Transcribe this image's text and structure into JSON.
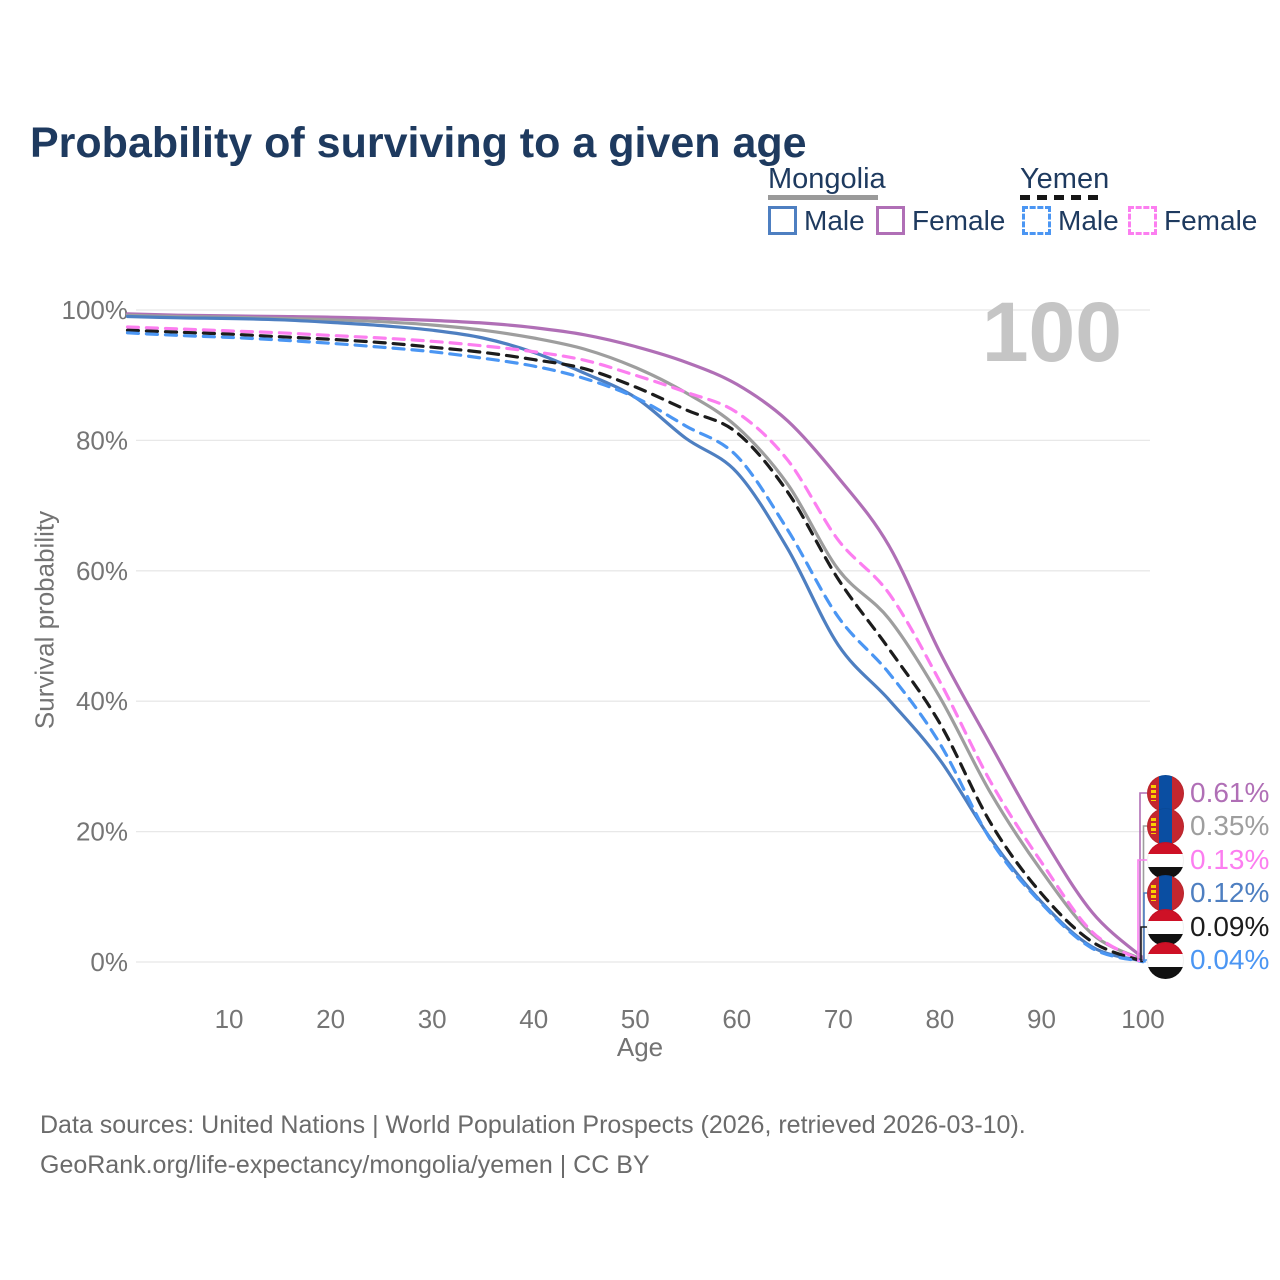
{
  "title": "Probability of surviving to a given age",
  "watermark": "100",
  "legend": {
    "mongolia": {
      "header": "Mongolia",
      "male_label": "Male",
      "female_label": "Female",
      "male_color": "#4e7fc1",
      "female_color": "#b06fb6",
      "line_style": "solid",
      "header_line_color": "#9a9a9a"
    },
    "yemen": {
      "header": "Yemen",
      "male_label": "Male",
      "female_label": "Female",
      "male_color": "#4b96f3",
      "female_color": "#fc7ef0",
      "line_style": "dashed",
      "header_line_color": "#161616"
    }
  },
  "y_axis": {
    "title": "Survival probability",
    "ticks": [
      "0%",
      "20%",
      "40%",
      "60%",
      "80%",
      "100%"
    ],
    "tick_values": [
      0,
      20,
      40,
      60,
      80,
      100
    ]
  },
  "x_axis": {
    "title": "Age",
    "ticks": [
      10,
      20,
      30,
      40,
      50,
      60,
      70,
      80,
      90,
      100
    ]
  },
  "end_labels": [
    {
      "value": "0.61%",
      "flag": "mongolia",
      "color": "#b06fb6",
      "series": "Mongolia Female"
    },
    {
      "value": "0.35%",
      "flag": "mongolia",
      "color": "#9e9e9e",
      "series": "Mongolia (combined)"
    },
    {
      "value": "0.13%",
      "flag": "yemen",
      "color": "#fc7ef0",
      "series": "Yemen Female"
    },
    {
      "value": "0.12%",
      "flag": "mongolia",
      "color": "#4e7fc1",
      "series": "Mongolia Male"
    },
    {
      "value": "0.09%",
      "flag": "yemen",
      "color": "#1c1c1c",
      "series": "Yemen (combined)"
    },
    {
      "value": "0.04%",
      "flag": "yemen",
      "color": "#4b96f3",
      "series": "Yemen Male"
    }
  ],
  "footer": {
    "line1": "Data sources: United Nations | World Population Prospects (2026, retrieved 2026-03-10).",
    "line2": "GeoRank.org/life-expectancy/mongolia/yemen | CC BY"
  },
  "chart_data": {
    "type": "line",
    "x": [
      0,
      5,
      10,
      15,
      20,
      25,
      30,
      35,
      40,
      45,
      50,
      55,
      60,
      65,
      70,
      75,
      80,
      85,
      90,
      95,
      100
    ],
    "xlabel": "Age",
    "ylabel": "Survival probability",
    "xlim": [
      0,
      100
    ],
    "ylim": [
      0,
      100
    ],
    "y_unit": "percent",
    "grid": "horizontal",
    "legend_position": "top-right",
    "series": [
      {
        "name": "Mongolia Female",
        "country": "Mongolia",
        "sex": "Female",
        "color": "#b06fb6",
        "dash": "solid",
        "end_label": "0.61%",
        "values": [
          99.4,
          99.2,
          99.1,
          99.0,
          98.9,
          98.7,
          98.4,
          98.0,
          97.3,
          96.2,
          94.4,
          92.0,
          88.6,
          83.0,
          74.3,
          63.8,
          47.5,
          33.3,
          19.5,
          7.6,
          0.61
        ]
      },
      {
        "name": "Mongolia (combined)",
        "country": "Mongolia",
        "sex": "Both",
        "color": "#9e9e9e",
        "dash": "solid",
        "end_label": "0.35%",
        "values": [
          99.2,
          99.0,
          98.9,
          98.7,
          98.5,
          98.2,
          97.7,
          96.9,
          95.7,
          94.0,
          91.2,
          87.3,
          82.1,
          73.3,
          60.2,
          52.6,
          40.6,
          25.9,
          14.0,
          4.3,
          0.35
        ]
      },
      {
        "name": "Mongolia Male",
        "country": "Mongolia",
        "sex": "Male",
        "color": "#4e7fc1",
        "dash": "solid",
        "end_label": "0.12%",
        "values": [
          99.0,
          98.8,
          98.7,
          98.5,
          98.1,
          97.6,
          96.9,
          95.7,
          93.5,
          90.3,
          86.6,
          80.3,
          75.1,
          63.4,
          48.6,
          40.2,
          31.0,
          18.9,
          9.2,
          2.3,
          0.12
        ]
      },
      {
        "name": "Yemen Female",
        "country": "Yemen",
        "sex": "Female",
        "color": "#fc7ef0",
        "dash": "dashed",
        "end_label": "0.13%",
        "values": [
          97.4,
          97.1,
          96.8,
          96.5,
          96.1,
          95.7,
          95.2,
          94.5,
          93.6,
          92.3,
          90.0,
          87.4,
          84.3,
          77.0,
          64.7,
          56.5,
          43.0,
          27.6,
          15.3,
          4.6,
          0.13
        ]
      },
      {
        "name": "Yemen (combined)",
        "country": "Yemen",
        "sex": "Both",
        "color": "#1c1c1c",
        "dash": "dashed",
        "end_label": "0.09%",
        "values": [
          96.9,
          96.6,
          96.3,
          95.9,
          95.5,
          95.0,
          94.3,
          93.5,
          92.4,
          91.0,
          88.2,
          84.7,
          81.2,
          72.1,
          58.7,
          48.0,
          36.6,
          21.3,
          10.5,
          3.1,
          0.09
        ]
      },
      {
        "name": "Yemen Male",
        "country": "Yemen",
        "sex": "Male",
        "color": "#4b96f3",
        "dash": "dashed",
        "end_label": "0.04%",
        "values": [
          96.5,
          96.1,
          95.8,
          95.4,
          94.9,
          94.3,
          93.6,
          92.6,
          91.4,
          89.5,
          86.6,
          82.2,
          77.6,
          66.3,
          52.9,
          44.3,
          33.5,
          18.7,
          9.0,
          2.1,
          0.04
        ]
      }
    ]
  }
}
